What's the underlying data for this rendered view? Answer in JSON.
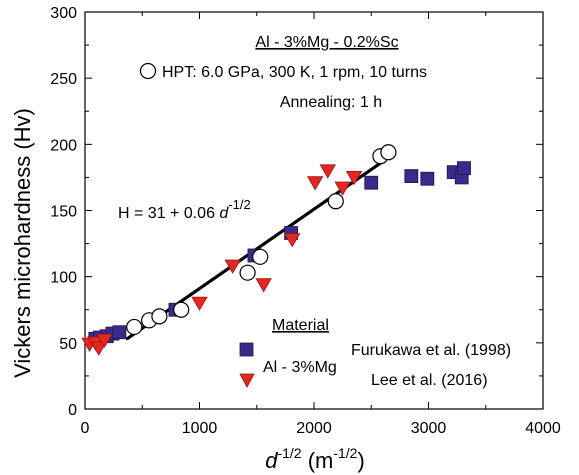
{
  "chart_data": {
    "type": "scatter",
    "xlabel": {
      "base": "d",
      "sup": "-1/2",
      "unit_open": " (m",
      "unit_sup": "-1/2",
      "unit_close": ")"
    },
    "ylabel": "Vickers microhardness (Hv)",
    "xlim": [
      0,
      4000
    ],
    "ylim": [
      0,
      300
    ],
    "xticks": [
      0,
      1000,
      2000,
      3000,
      4000
    ],
    "yticks": [
      0,
      50,
      100,
      150,
      200,
      250,
      300
    ],
    "grid": false,
    "annotations": {
      "title": "Al - 3%Mg - 0.2%Sc",
      "hpt_label": "HPT: 6.0 GPa, 300 K, 1 rpm, 10 turns",
      "annealing": "Annealing: 1 h",
      "fit_equation_main": "H = 31 + 0.06 ",
      "fit_equation_var": "d",
      "fit_equation_sup": "-1/2",
      "material_header": "Material",
      "material_name": "Al - 3%Mg"
    },
    "fit_line": {
      "intercept": 31,
      "slope": 0.06,
      "x_range": [
        370,
        2640
      ]
    },
    "series": [
      {
        "name": "HPT: 6.0 GPa, 300 K, 1 rpm, 10 turns",
        "marker": "circle",
        "color": "#ffffff",
        "points": [
          [
            430,
            62
          ],
          [
            560,
            67
          ],
          [
            650,
            70
          ],
          [
            840,
            75
          ],
          [
            1420,
            103
          ],
          [
            1530,
            115
          ],
          [
            2190,
            157
          ],
          [
            2580,
            191
          ],
          [
            2650,
            194
          ]
        ]
      },
      {
        "name": "Furukawa et al. (1998)",
        "marker": "square",
        "color": "#3a2a8c",
        "points": [
          [
            90,
            53
          ],
          [
            130,
            54
          ],
          [
            190,
            55
          ],
          [
            240,
            57
          ],
          [
            300,
            58
          ],
          [
            790,
            75
          ],
          [
            1480,
            116
          ],
          [
            1800,
            133
          ],
          [
            2500,
            171
          ],
          [
            2850,
            176
          ],
          [
            2990,
            174
          ],
          [
            3220,
            179
          ],
          [
            3290,
            175
          ],
          [
            3310,
            182
          ]
        ]
      },
      {
        "name": "Lee et al. (2016)",
        "marker": "triangle",
        "color": "#e8251f",
        "points": [
          [
            40,
            49
          ],
          [
            90,
            50
          ],
          [
            120,
            46
          ],
          [
            170,
            52
          ],
          [
            1000,
            80
          ],
          [
            1290,
            108
          ],
          [
            1560,
            94
          ],
          [
            1810,
            128
          ],
          [
            2010,
            171
          ],
          [
            2120,
            180
          ],
          [
            2250,
            167
          ],
          [
            2350,
            175
          ]
        ]
      }
    ]
  }
}
